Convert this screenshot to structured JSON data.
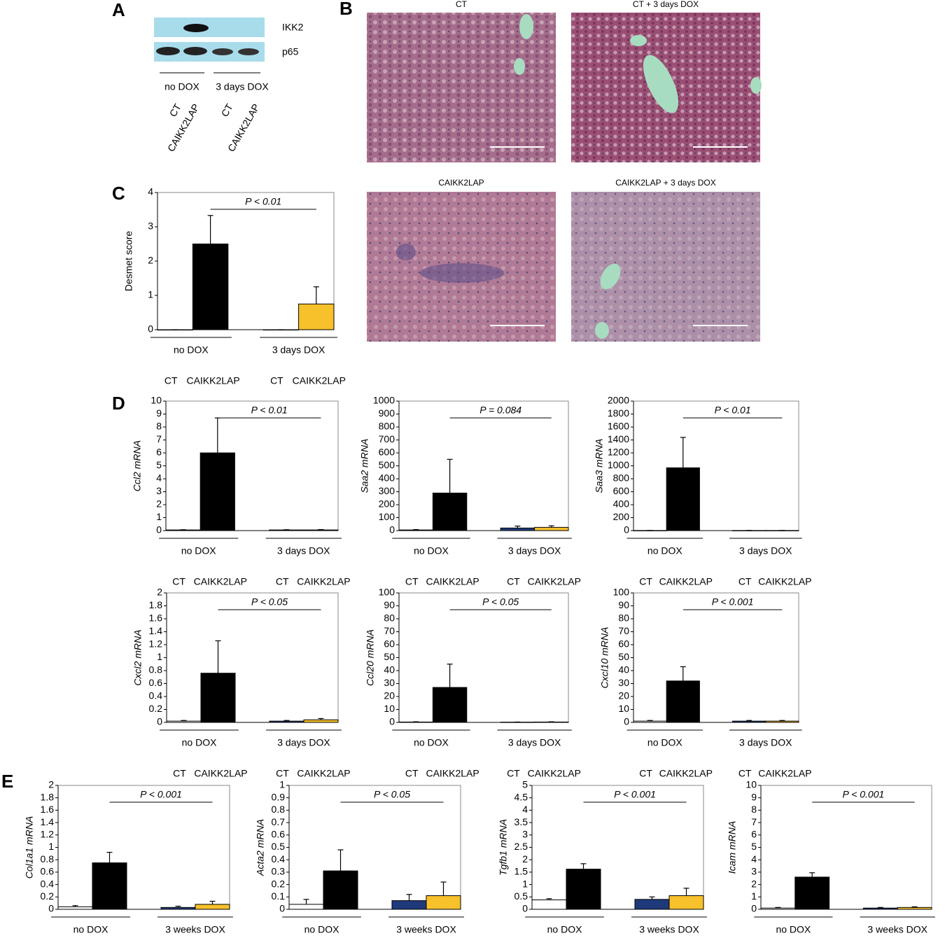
{
  "panel_labels": [
    "A",
    "B",
    "C",
    "D",
    "E"
  ],
  "blot": {
    "bands": [
      "IKK2",
      "p65"
    ],
    "groups": [
      "no DOX",
      "3 days DOX"
    ],
    "lanes": [
      "CT",
      "CAIKK2LAP",
      "CT",
      "CAIKK2LAP"
    ]
  },
  "micrographs": [
    "CT",
    "CT + 3 days DOX",
    "CAIKK2LAP",
    "CAIKK2LAP + 3 days DOX"
  ],
  "chart_data": [
    {
      "type": "bar",
      "ylabel": "Desmet score",
      "annotation": "P < 0.01",
      "groups": [
        "no DOX",
        "3 days DOX"
      ],
      "categories": [
        "CT",
        "CAIKK2LAP",
        "CT",
        "CAIKK2LAP"
      ],
      "values": [
        0,
        2.5,
        0,
        0.75
      ],
      "errors": [
        0,
        0.83,
        0,
        0.5
      ],
      "colors": [
        "#ffffff",
        "#000000",
        "#ffffff",
        "#f7c12b"
      ],
      "ylim": [
        0,
        4
      ],
      "yticks": [
        0,
        1,
        2,
        3,
        4
      ]
    },
    {
      "type": "bar",
      "ylabel": "Ccl2 mRNA",
      "annotation": "P < 0.01",
      "groups": [
        "no DOX",
        "3 days DOX"
      ],
      "categories": [
        "CT",
        "CAIKK2LAP",
        "CT",
        "CAIKK2LAP"
      ],
      "values": [
        0.05,
        6.0,
        0.05,
        0.05
      ],
      "errors": [
        0.02,
        2.7,
        0.02,
        0.03
      ],
      "colors": [
        "#ffffff",
        "#000000",
        "#1f3a7a",
        "#f7c12b"
      ],
      "ylim": [
        0,
        10
      ],
      "yticks": [
        0,
        1,
        2,
        3,
        4,
        5,
        6,
        7,
        8,
        9,
        10
      ]
    },
    {
      "type": "bar",
      "ylabel": "Saa2 mRNA",
      "annotation": "P = 0.084",
      "groups": [
        "no DOX",
        "3 days DOX"
      ],
      "categories": [
        "CT",
        "CAIKK2LAP",
        "CT",
        "CAIKK2LAP"
      ],
      "values": [
        5,
        290,
        20,
        25
      ],
      "errors": [
        3,
        260,
        15,
        12
      ],
      "colors": [
        "#ffffff",
        "#000000",
        "#1f3a7a",
        "#f7c12b"
      ],
      "ylim": [
        0,
        1000
      ],
      "yticks": [
        0,
        100,
        200,
        300,
        400,
        500,
        600,
        700,
        800,
        900,
        1000
      ]
    },
    {
      "type": "bar",
      "ylabel": "Saa3 mRNA",
      "annotation": "P < 0.01",
      "groups": [
        "no DOX",
        "3 days DOX"
      ],
      "categories": [
        "CT",
        "CAIKK2LAP",
        "CT",
        "CAIKK2LAP"
      ],
      "values": [
        2,
        970,
        2,
        2
      ],
      "errors": [
        1,
        470,
        1,
        1
      ],
      "colors": [
        "#ffffff",
        "#000000",
        "#1f3a7a",
        "#f7c12b"
      ],
      "ylim": [
        0,
        2000
      ],
      "yticks": [
        0,
        200,
        400,
        600,
        800,
        1000,
        1200,
        1400,
        1600,
        1800,
        2000
      ]
    },
    {
      "type": "bar",
      "ylabel": "Cxcl2 mRNA",
      "annotation": "P < 0.05",
      "groups": [
        "no DOX",
        "3 days DOX"
      ],
      "categories": [
        "CT",
        "CAIKK2LAP",
        "CT",
        "CAIKK2LAP"
      ],
      "values": [
        0.02,
        0.76,
        0.02,
        0.04
      ],
      "errors": [
        0.01,
        0.5,
        0.01,
        0.02
      ],
      "colors": [
        "#ffffff",
        "#000000",
        "#1f3a7a",
        "#f7c12b"
      ],
      "ylim": [
        0,
        2
      ],
      "yticks": [
        0,
        0.2,
        0.4,
        0.6,
        0.8,
        1,
        1.2,
        1.4,
        1.6,
        1.8,
        2
      ]
    },
    {
      "type": "bar",
      "ylabel": "Ccl20 mRNA",
      "annotation": "P < 0.05",
      "groups": [
        "no DOX",
        "3 days DOX"
      ],
      "categories": [
        "CT",
        "CAIKK2LAP",
        "CT",
        "CAIKK2LAP"
      ],
      "values": [
        0.3,
        27,
        0.2,
        0.3
      ],
      "errors": [
        0.2,
        18,
        0.1,
        0.2
      ],
      "colors": [
        "#ffffff",
        "#000000",
        "#1f3a7a",
        "#f7c12b"
      ],
      "ylim": [
        0,
        100
      ],
      "yticks": [
        0,
        10,
        20,
        30,
        40,
        50,
        60,
        70,
        80,
        90,
        100
      ]
    },
    {
      "type": "bar",
      "ylabel": "Cxcl10 mRNA",
      "annotation": "P < 0.001",
      "groups": [
        "no DOX",
        "3 days DOX"
      ],
      "categories": [
        "CT",
        "CAIKK2LAP",
        "CT",
        "CAIKK2LAP"
      ],
      "values": [
        1,
        32,
        1,
        1
      ],
      "errors": [
        0.5,
        11,
        0.5,
        0.5
      ],
      "colors": [
        "#ffffff",
        "#000000",
        "#1f3a7a",
        "#f7c12b"
      ],
      "ylim": [
        0,
        100
      ],
      "yticks": [
        0,
        10,
        20,
        30,
        40,
        50,
        60,
        70,
        80,
        90,
        100
      ]
    },
    {
      "type": "bar",
      "ylabel": "Col1a1 mRNA",
      "annotation": "P < 0.001",
      "groups": [
        "no DOX",
        "3 weeks DOX"
      ],
      "categories": [
        "CT",
        "CAIKK2LAP",
        "CT",
        "CAIKK2LAP"
      ],
      "values": [
        0.04,
        0.75,
        0.03,
        0.08
      ],
      "errors": [
        0.02,
        0.17,
        0.02,
        0.05
      ],
      "colors": [
        "#ffffff",
        "#000000",
        "#1f3a7a",
        "#f7c12b"
      ],
      "ylim": [
        0,
        2
      ],
      "yticks": [
        0,
        0.2,
        0.4,
        0.6,
        0.8,
        1,
        1.2,
        1.4,
        1.6,
        1.8,
        2
      ]
    },
    {
      "type": "bar",
      "ylabel": "Acta2 mRNA",
      "annotation": "P < 0.05",
      "groups": [
        "no DOX",
        "3 weeks DOX"
      ],
      "categories": [
        "CT",
        "CAIKK2LAP",
        "CT",
        "CAIKK2LAP"
      ],
      "values": [
        0.04,
        0.31,
        0.07,
        0.11
      ],
      "errors": [
        0.04,
        0.17,
        0.05,
        0.11
      ],
      "colors": [
        "#ffffff",
        "#000000",
        "#1f3a7a",
        "#f7c12b"
      ],
      "ylim": [
        0,
        1
      ],
      "yticks": [
        0,
        0.1,
        0.2,
        0.3,
        0.4,
        0.5,
        0.6,
        0.7,
        0.8,
        0.9,
        1
      ]
    },
    {
      "type": "bar",
      "ylabel": "Tgfb1 mRNA",
      "annotation": "P < 0.001",
      "groups": [
        "no DOX",
        "3 weeks DOX"
      ],
      "categories": [
        "CT",
        "CAIKK2LAP",
        "CT",
        "CAIKK2LAP"
      ],
      "values": [
        0.38,
        1.62,
        0.4,
        0.55
      ],
      "errors": [
        0.05,
        0.22,
        0.1,
        0.3
      ],
      "colors": [
        "#ffffff",
        "#000000",
        "#1f3a7a",
        "#f7c12b"
      ],
      "ylim": [
        0,
        5
      ],
      "yticks": [
        0,
        0.5,
        1,
        1.5,
        2,
        2.5,
        3,
        3.5,
        4,
        4.5,
        5
      ]
    },
    {
      "type": "bar",
      "ylabel": "Icam mRNA",
      "annotation": "P < 0.001",
      "groups": [
        "no DOX",
        "3 weeks DOX"
      ],
      "categories": [
        "CT",
        "CAIKK2LAP",
        "CT",
        "CAIKK2LAP"
      ],
      "values": [
        0.1,
        2.6,
        0.1,
        0.15
      ],
      "errors": [
        0.05,
        0.35,
        0.05,
        0.05
      ],
      "colors": [
        "#ffffff",
        "#000000",
        "#1f3a7a",
        "#f7c12b"
      ],
      "ylim": [
        0,
        10
      ],
      "yticks": [
        0,
        1,
        2,
        3,
        4,
        5,
        6,
        7,
        8,
        9,
        10
      ]
    }
  ]
}
